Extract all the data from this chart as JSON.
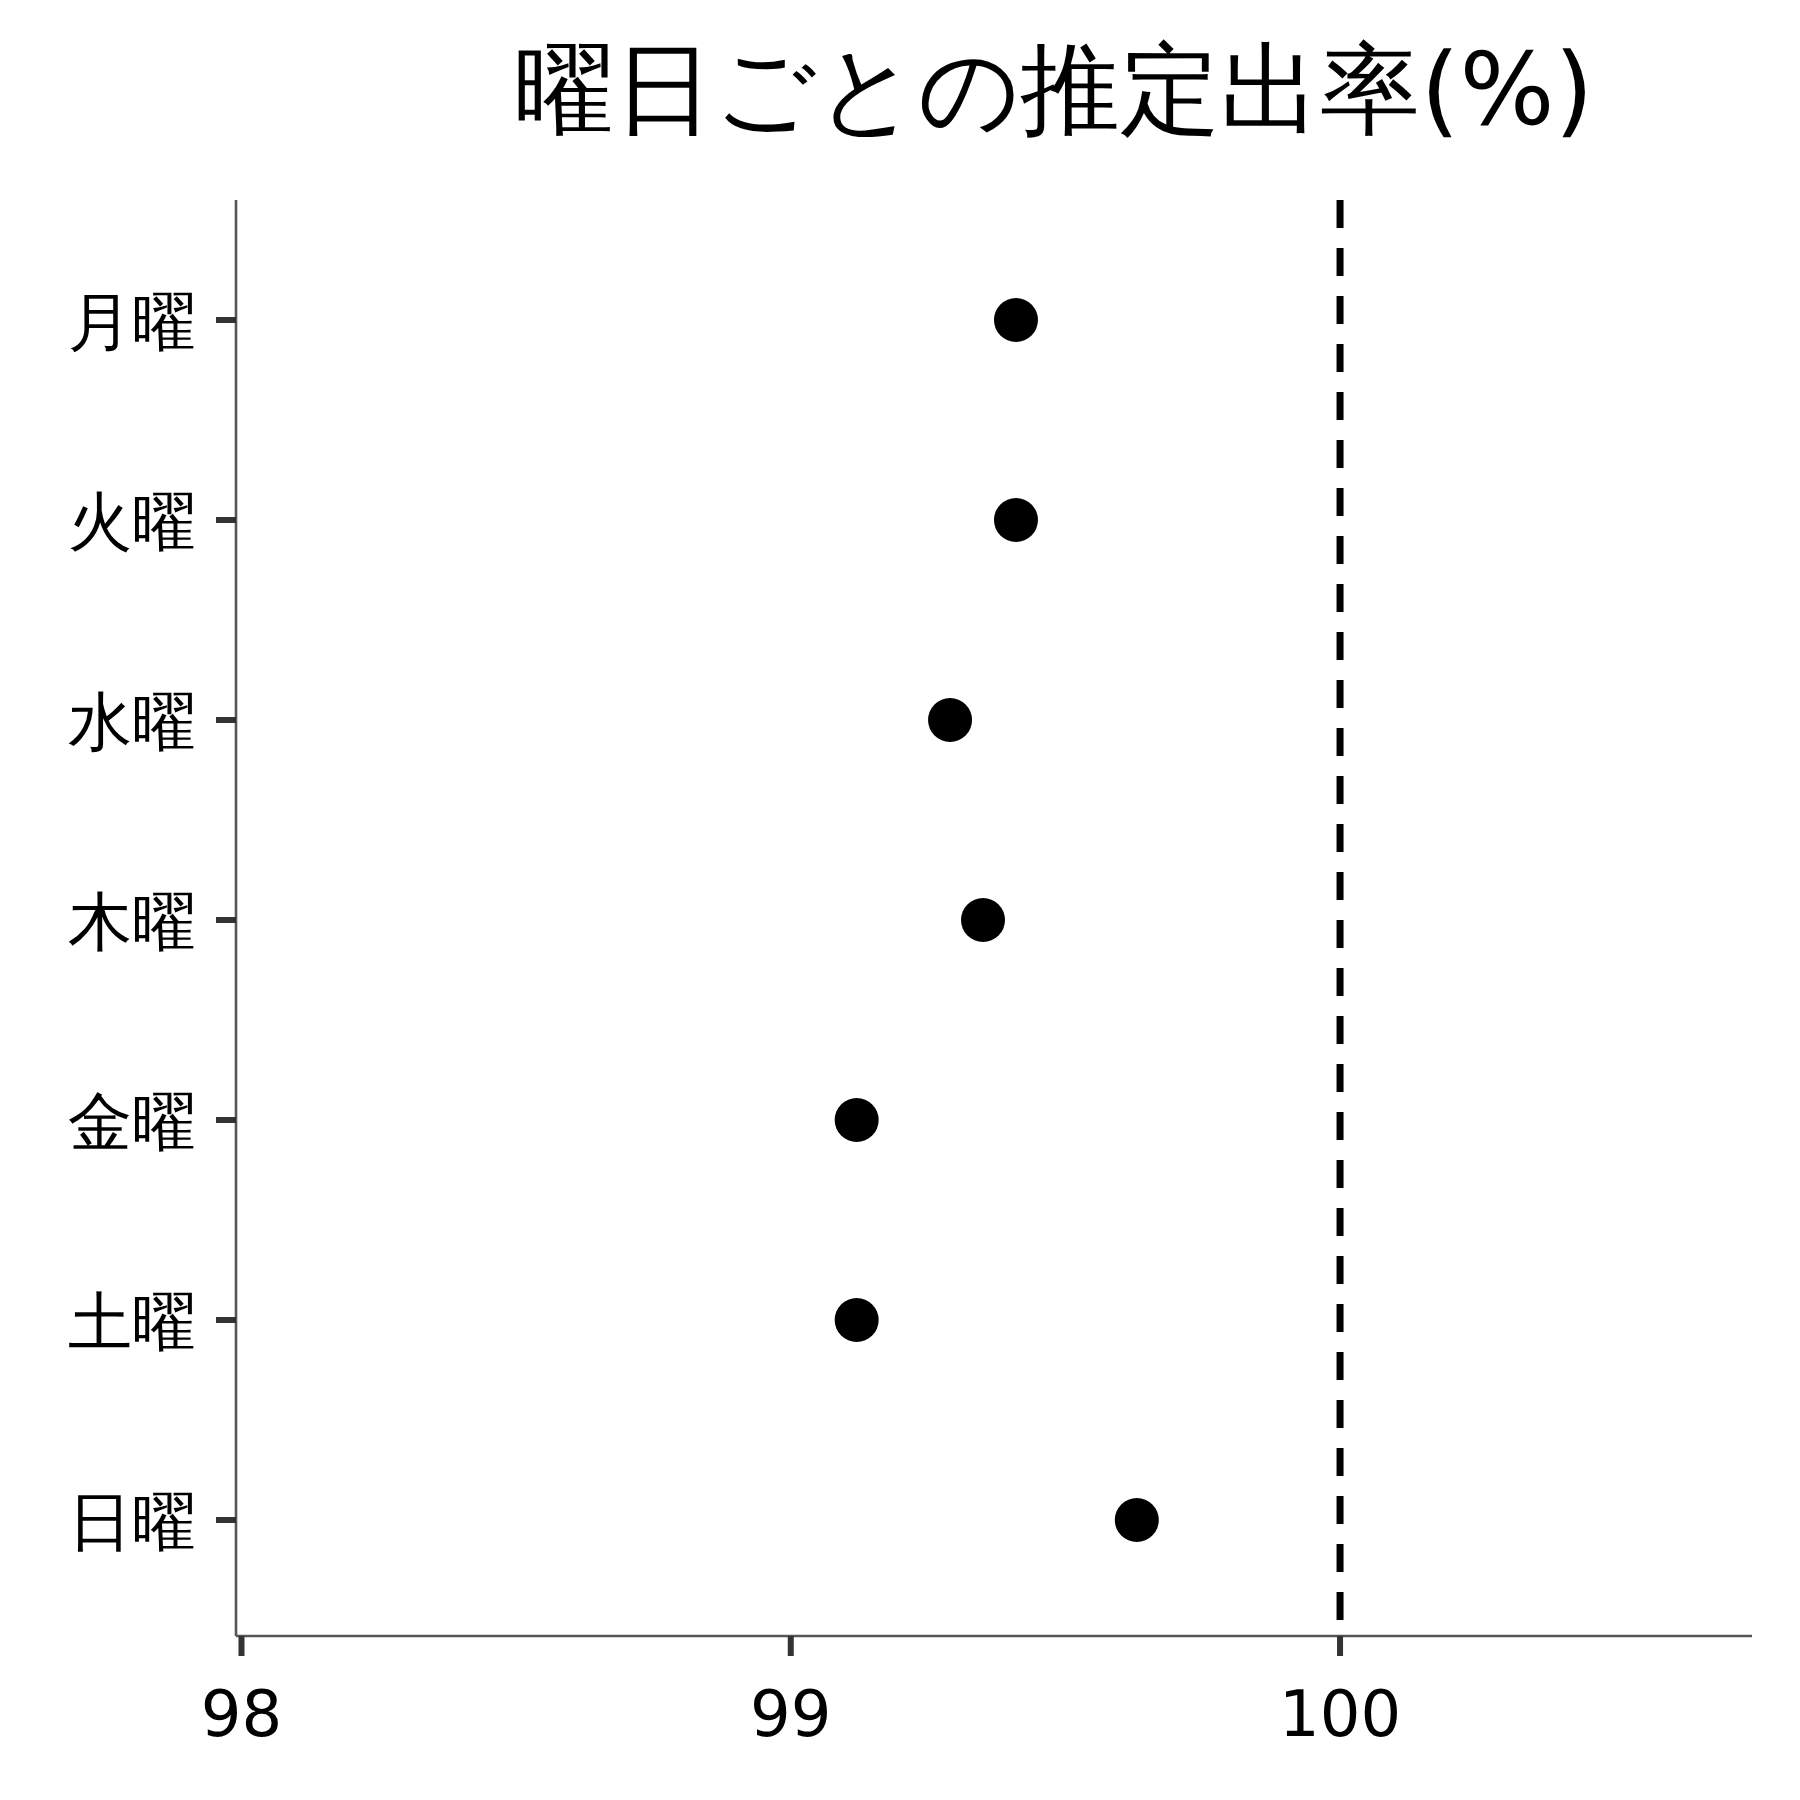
{
  "chart_data": {
    "type": "scatter",
    "title": "曜日ごとの推定出率(%)",
    "orientation": "horizontal",
    "categories": [
      "月曜",
      "火曜",
      "水曜",
      "木曜",
      "金曜",
      "土曜",
      "日曜"
    ],
    "values": [
      99.41,
      99.41,
      99.29,
      99.35,
      99.12,
      99.12,
      99.63
    ],
    "color": "#000000",
    "marker": "circle",
    "xlim": [
      97.99,
      100.75
    ],
    "xticks": [
      98,
      99,
      100
    ],
    "ref_lines": [
      {
        "axis": "x",
        "value": 100,
        "color": "#000000",
        "line_style": "dashed"
      }
    ]
  }
}
